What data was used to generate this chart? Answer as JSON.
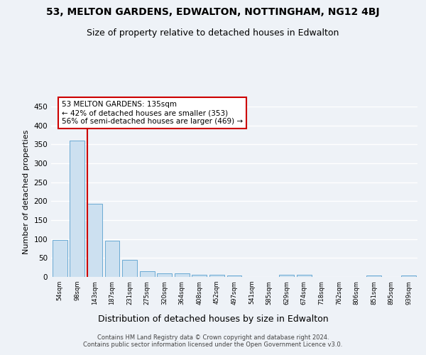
{
  "title1": "53, MELTON GARDENS, EDWALTON, NOTTINGHAM, NG12 4BJ",
  "title2": "Size of property relative to detached houses in Edwalton",
  "xlabel": "Distribution of detached houses by size in Edwalton",
  "ylabel": "Number of detached properties",
  "footnote": "Contains HM Land Registry data © Crown copyright and database right 2024.\nContains public sector information licensed under the Open Government Licence v3.0.",
  "bar_labels": [
    "54sqm",
    "98sqm",
    "143sqm",
    "187sqm",
    "231sqm",
    "275sqm",
    "320sqm",
    "364sqm",
    "408sqm",
    "452sqm",
    "497sqm",
    "541sqm",
    "585sqm",
    "629sqm",
    "674sqm",
    "718sqm",
    "762sqm",
    "806sqm",
    "851sqm",
    "895sqm",
    "939sqm"
  ],
  "bar_values": [
    97,
    360,
    193,
    95,
    45,
    15,
    10,
    10,
    6,
    5,
    3,
    0,
    0,
    5,
    5,
    0,
    0,
    0,
    4,
    0,
    4
  ],
  "bar_color": "#cce0f0",
  "bar_edge_color": "#6aaad4",
  "vline_x_index": 2,
  "vline_color": "#cc0000",
  "annotation_line1": "53 MELTON GARDENS: 135sqm",
  "annotation_line2": "← 42% of detached houses are smaller (353)",
  "annotation_line3": "56% of semi-detached houses are larger (469) →",
  "annotation_box_color": "#ffffff",
  "annotation_box_edge": "#cc0000",
  "ylim": [
    0,
    450
  ],
  "yticks": [
    0,
    50,
    100,
    150,
    200,
    250,
    300,
    350,
    400,
    450
  ],
  "background_color": "#eef2f7",
  "plot_background": "#eef2f7",
  "grid_color": "#ffffff",
  "title1_fontsize": 10,
  "title2_fontsize": 9,
  "ylabel_fontsize": 8,
  "xlabel_fontsize": 9
}
